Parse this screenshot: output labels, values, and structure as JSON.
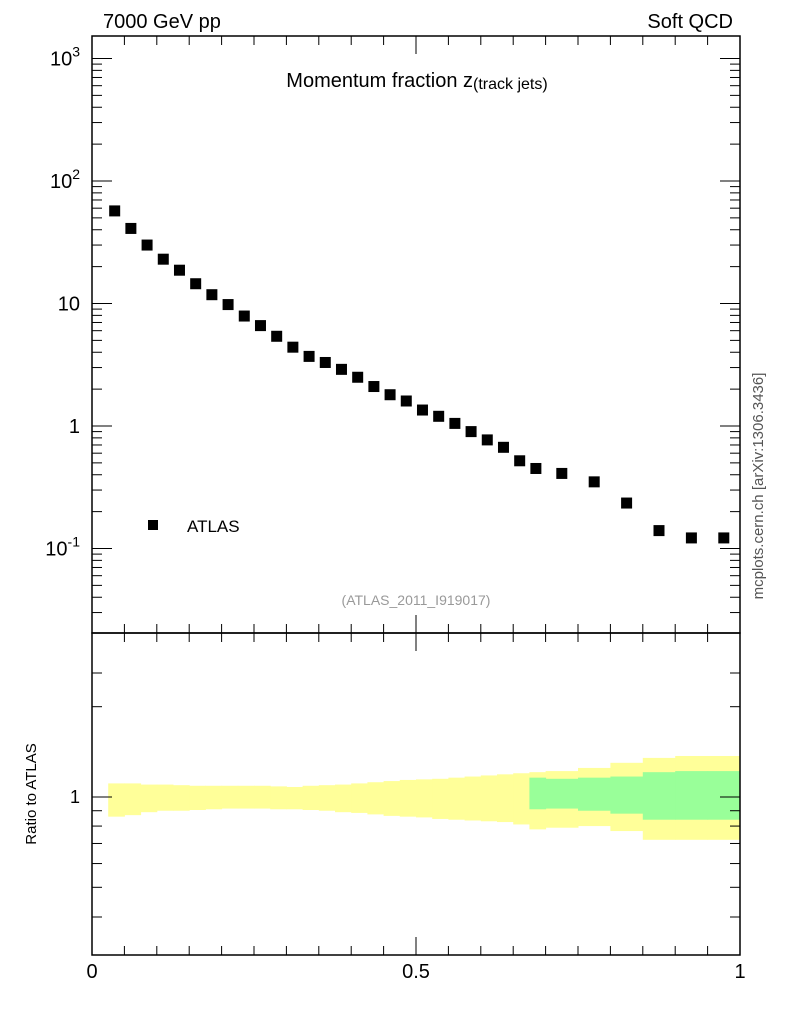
{
  "header": {
    "left": "7000 GeV pp",
    "right": "Soft QCD"
  },
  "chart_data": [
    {
      "type": "scatter",
      "panel": "main",
      "title_main": "Momentum fraction z",
      "title_sub": "(track jets)",
      "yscale": "log",
      "xlim": [
        0,
        1
      ],
      "ylim": [
        0.02,
        1500
      ],
      "y_tick_labels": [
        "10^-1",
        "1",
        "10",
        "10^2",
        "10^3"
      ],
      "x_tick_labels": [
        "0",
        "0.5",
        "1"
      ],
      "series": [
        {
          "name": "ATLAS",
          "color": "#000000",
          "marker": "square",
          "x": [
            0.035,
            0.06,
            0.085,
            0.11,
            0.135,
            0.16,
            0.185,
            0.21,
            0.235,
            0.26,
            0.285,
            0.31,
            0.335,
            0.36,
            0.385,
            0.41,
            0.435,
            0.46,
            0.485,
            0.51,
            0.535,
            0.56,
            0.585,
            0.61,
            0.635,
            0.66,
            0.685,
            0.725,
            0.775,
            0.825,
            0.875,
            0.925,
            0.975
          ],
          "y": [
            57,
            41,
            30,
            23,
            18.7,
            14.5,
            11.8,
            9.8,
            7.9,
            6.6,
            5.4,
            4.4,
            3.7,
            3.3,
            2.9,
            2.5,
            2.1,
            1.8,
            1.6,
            1.35,
            1.2,
            1.05,
            0.9,
            0.77,
            0.67,
            0.52,
            0.45,
            0.41,
            0.35,
            0.235,
            0.14,
            0.122,
            0.122
          ]
        }
      ],
      "legend_position": "bottom-left",
      "annotation": "(ATLAS_2011_I919017)"
    },
    {
      "type": "area",
      "panel": "ratio",
      "ylabel": "Ratio to ATLAS",
      "y_tick_labels": [
        "1"
      ],
      "x_tick_labels": [
        "0",
        "0.5",
        "1"
      ],
      "bin_edges": [
        0.025,
        0.05,
        0.075,
        0.1,
        0.125,
        0.15,
        0.175,
        0.2,
        0.225,
        0.25,
        0.275,
        0.3,
        0.325,
        0.35,
        0.375,
        0.4,
        0.425,
        0.45,
        0.475,
        0.5,
        0.525,
        0.55,
        0.575,
        0.6,
        0.625,
        0.65,
        0.675,
        0.7,
        0.75,
        0.8,
        0.85,
        0.9,
        0.95,
        1.0
      ],
      "total_band": {
        "color": "#ffff99",
        "upper": [
          1.11,
          1.11,
          1.1,
          1.1,
          1.095,
          1.09,
          1.09,
          1.09,
          1.09,
          1.09,
          1.085,
          1.08,
          1.09,
          1.095,
          1.1,
          1.11,
          1.12,
          1.13,
          1.14,
          1.145,
          1.15,
          1.16,
          1.17,
          1.18,
          1.19,
          1.2,
          1.21,
          1.22,
          1.25,
          1.3,
          1.35,
          1.37,
          1.37
        ],
        "lower": [
          0.86,
          0.87,
          0.89,
          0.9,
          0.9,
          0.905,
          0.91,
          0.915,
          0.915,
          0.915,
          0.91,
          0.91,
          0.905,
          0.9,
          0.89,
          0.885,
          0.875,
          0.865,
          0.86,
          0.855,
          0.845,
          0.84,
          0.835,
          0.83,
          0.825,
          0.81,
          0.78,
          0.79,
          0.8,
          0.77,
          0.72,
          0.72,
          0.72
        ]
      },
      "stat_band": {
        "color": "#99ff99",
        "x_start": 0.675,
        "upper": [
          1.16,
          1.15,
          1.16,
          1.17,
          1.21,
          1.22,
          1.22
        ],
        "lower": [
          0.91,
          0.915,
          0.9,
          0.88,
          0.84,
          0.84,
          0.84
        ]
      }
    }
  ],
  "side_label": "mcplots.cern.ch [arXiv:1306.3436]"
}
